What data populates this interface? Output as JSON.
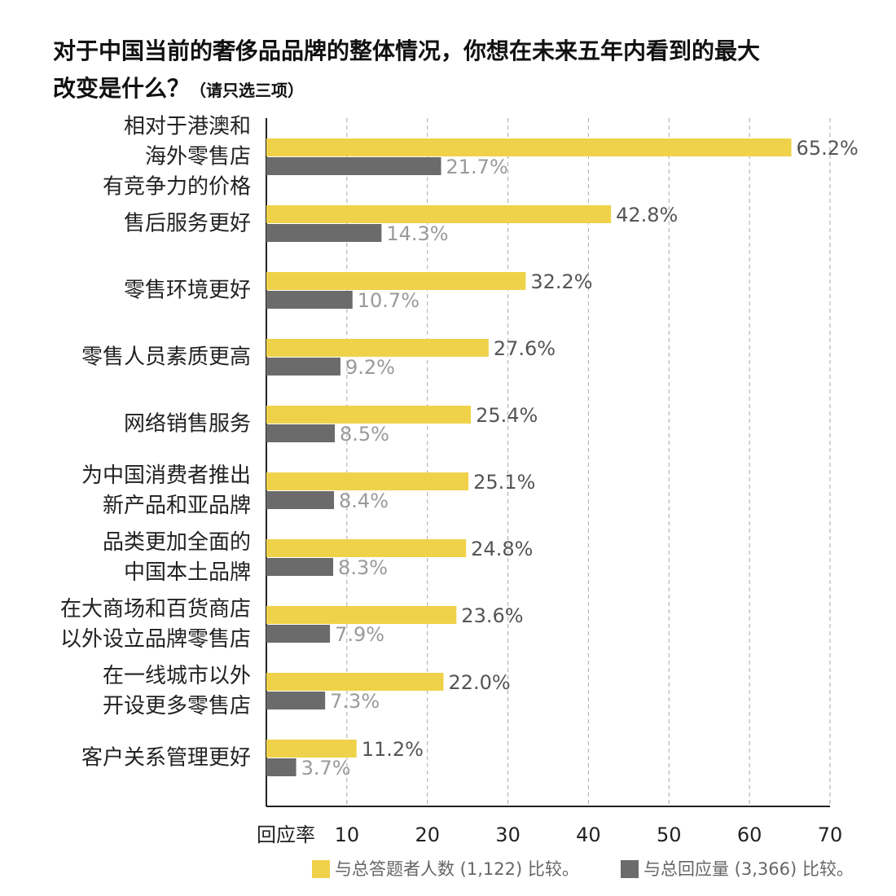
{
  "chart_data": {
    "type": "bar",
    "orientation": "horizontal",
    "title": "对于中国当前的奢侈品品牌的整体情况，你想在未来五年内看到的最大\n改变是什么？",
    "subtitle": "（请只选三项）",
    "xlabel": "回应率",
    "categories": [
      "相对于港澳和\n海外零售店\n有竞争力的价格",
      "售后服务更好",
      "零售环境更好",
      "零售人员素质更高",
      "网络销售服务",
      "为中国消费者推出\n新产品和亚品牌",
      "品类更加全面的\n中国本土品牌",
      "在大商场和百货商店\n以外设立品牌零售店",
      "在一线城市以外\n开设更多零售店",
      "客户关系管理更好"
    ],
    "series": [
      {
        "name": "与总答题者人数 (1,122) 比较。",
        "color": "#efd24a",
        "label_color": "#555555",
        "values": [
          65.2,
          42.8,
          32.2,
          27.6,
          25.4,
          25.1,
          24.8,
          23.6,
          22.0,
          11.2
        ],
        "value_labels": [
          "65.2%",
          "42.8%",
          "32.2%",
          "27.6%",
          "25.4%",
          "25.1%",
          "24.8%",
          "23.6%",
          "22.0%",
          "11.2%"
        ]
      },
      {
        "name": "与总回应量 (3,366) 比较。",
        "color": "#6b6b6c",
        "label_color": "#9a9a9a",
        "values": [
          21.7,
          14.3,
          10.7,
          9.2,
          8.5,
          8.4,
          8.3,
          7.9,
          7.3,
          3.7
        ],
        "value_labels": [
          "21.7%",
          "14.3%",
          "10.7%",
          "9.2%",
          "8.5%",
          "8.4%",
          "8.3%",
          "7.9%",
          "7.3%",
          "3.7%"
        ]
      }
    ],
    "xlim": [
      0,
      70
    ],
    "xticks": [
      10,
      20,
      30,
      40,
      50,
      60,
      70
    ],
    "grid": true
  }
}
